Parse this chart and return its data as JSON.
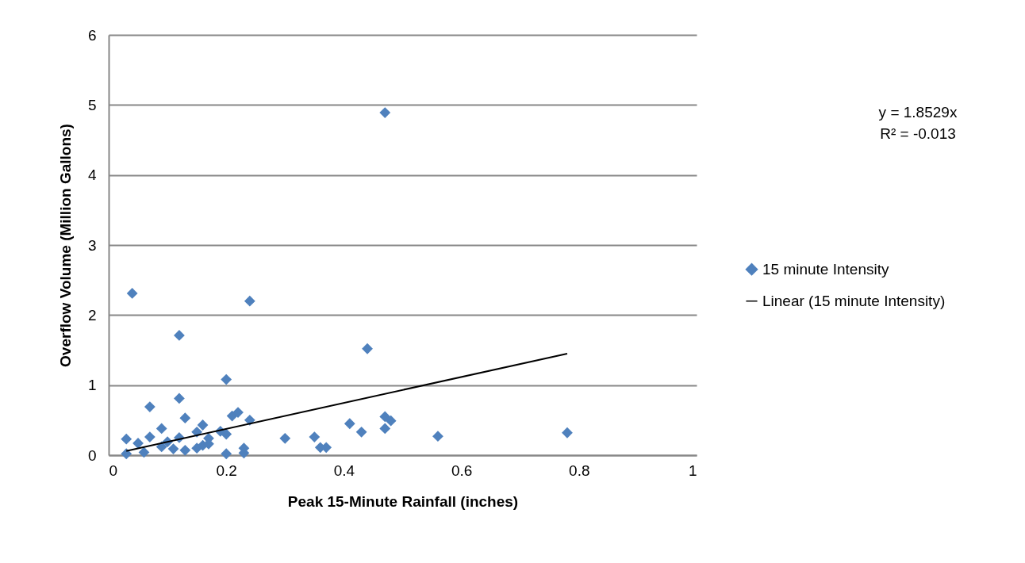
{
  "chart_data": {
    "type": "scatter",
    "xlabel": "Peak 15-Minute Rainfall (inches)",
    "ylabel": "Overflow Volume (Million Gallons)",
    "xlim": [
      0,
      1
    ],
    "xticks": [
      0,
      0.2,
      0.4,
      0.6,
      0.8,
      1
    ],
    "ylim": [
      0,
      6
    ],
    "yticks": [
      0,
      1,
      2,
      3,
      4,
      5,
      6
    ],
    "grid": "y",
    "legend": "right",
    "annotations": [
      "y = 1.8529x",
      "R² = -0.013"
    ],
    "series": [
      {
        "name": "15 minute Intensity",
        "color": "#4f81bd",
        "marker": "diamond",
        "x": [
          0.03,
          0.03,
          0.04,
          0.05,
          0.06,
          0.07,
          0.07,
          0.09,
          0.09,
          0.1,
          0.11,
          0.12,
          0.12,
          0.12,
          0.13,
          0.13,
          0.15,
          0.15,
          0.16,
          0.16,
          0.17,
          0.17,
          0.19,
          0.2,
          0.2,
          0.2,
          0.21,
          0.22,
          0.23,
          0.23,
          0.24,
          0.24,
          0.3,
          0.35,
          0.36,
          0.37,
          0.41,
          0.43,
          0.44,
          0.47,
          0.47,
          0.47,
          0.48,
          0.56,
          0.78
        ],
        "values": [
          0.23,
          0.02,
          2.31,
          0.17,
          0.04,
          0.69,
          0.26,
          0.38,
          0.12,
          0.19,
          0.09,
          1.71,
          0.81,
          0.25,
          0.53,
          0.07,
          0.1,
          0.33,
          0.43,
          0.14,
          0.24,
          0.16,
          0.34,
          1.08,
          0.3,
          0.02,
          0.56,
          0.61,
          0.1,
          0.03,
          2.2,
          0.5,
          0.24,
          0.26,
          0.11,
          0.11,
          0.45,
          0.33,
          1.52,
          4.89,
          0.55,
          0.38,
          0.49,
          0.27,
          0.32
        ]
      },
      {
        "name": "Linear (15 minute Intensity)",
        "type": "line",
        "color": "#000000",
        "x": [
          0.03,
          0.78
        ],
        "values": [
          0.06,
          1.45
        ]
      }
    ]
  }
}
